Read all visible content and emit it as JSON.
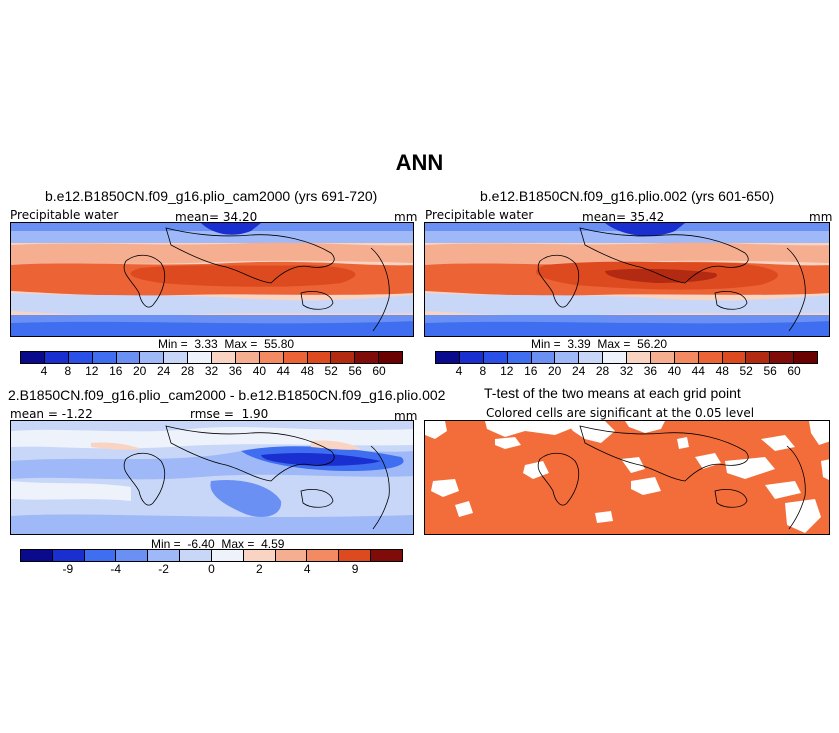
{
  "page_title": "ANN",
  "panel1": {
    "title": "b.e12.B1850CN.f09_g16.plio_cam2000 (yrs 691-720)",
    "variable": "Precipitable water",
    "mean_label": "mean=",
    "mean_value": "34.20",
    "units": "mm",
    "min_label": "Min =",
    "min_value": "3.33",
    "max_label": "Max =",
    "max_value": "55.80"
  },
  "panel2": {
    "title": "b.e12.B1850CN.f09_g16.plio.002 (yrs 601-650)",
    "variable": "Precipitable water",
    "mean_label": "mean=",
    "mean_value": "35.42",
    "units": "mm",
    "min_label": "Min =",
    "min_value": "3.39",
    "max_label": "Max =",
    "max_value": "56.20"
  },
  "panel3": {
    "title": "2.B1850CN.f09_g16.plio_cam2000 - b.e12.B1850CN.f09_g16.plio.002",
    "mean_label": "mean =",
    "mean_value": "-1.22",
    "rmse_label": "rmse =",
    "rmse_value": "1.90",
    "units": "mm",
    "min_label": "Min =",
    "min_value": "-6.40",
    "max_label": "Max =",
    "max_value": "4.59"
  },
  "panel4": {
    "title": "T-test of the two means at each grid point",
    "subtitle": "Colored cells are significant at the 0.05 level",
    "significant_color": "#f26d3a"
  },
  "colorbar_main": {
    "ticks": [
      "4",
      "8",
      "12",
      "16",
      "20",
      "24",
      "28",
      "32",
      "36",
      "40",
      "44",
      "48",
      "52",
      "56",
      "60"
    ],
    "colors": [
      "#0a0a8c",
      "#1a2fd0",
      "#2b50e8",
      "#3f6ef0",
      "#6a90f4",
      "#9fb8f7",
      "#c8d7f8",
      "#eef2fb",
      "#f9d4c2",
      "#f6ae90",
      "#f38a62",
      "#ec6336",
      "#de4a1f",
      "#b32a12",
      "#7f0c08",
      "#6a0000"
    ]
  },
  "colorbar_diff": {
    "ticks": [
      "-9",
      "-4",
      "-2",
      "0",
      "2",
      "4",
      "9"
    ],
    "colors": [
      "#0a0a8c",
      "#1a2fd0",
      "#3f6ef0",
      "#6a90f4",
      "#9fb8f7",
      "#c8d7f8",
      "#eef2fb",
      "#f9d4c2",
      "#f6ae90",
      "#f38a62",
      "#de4a1f",
      "#7f0c08"
    ]
  }
}
